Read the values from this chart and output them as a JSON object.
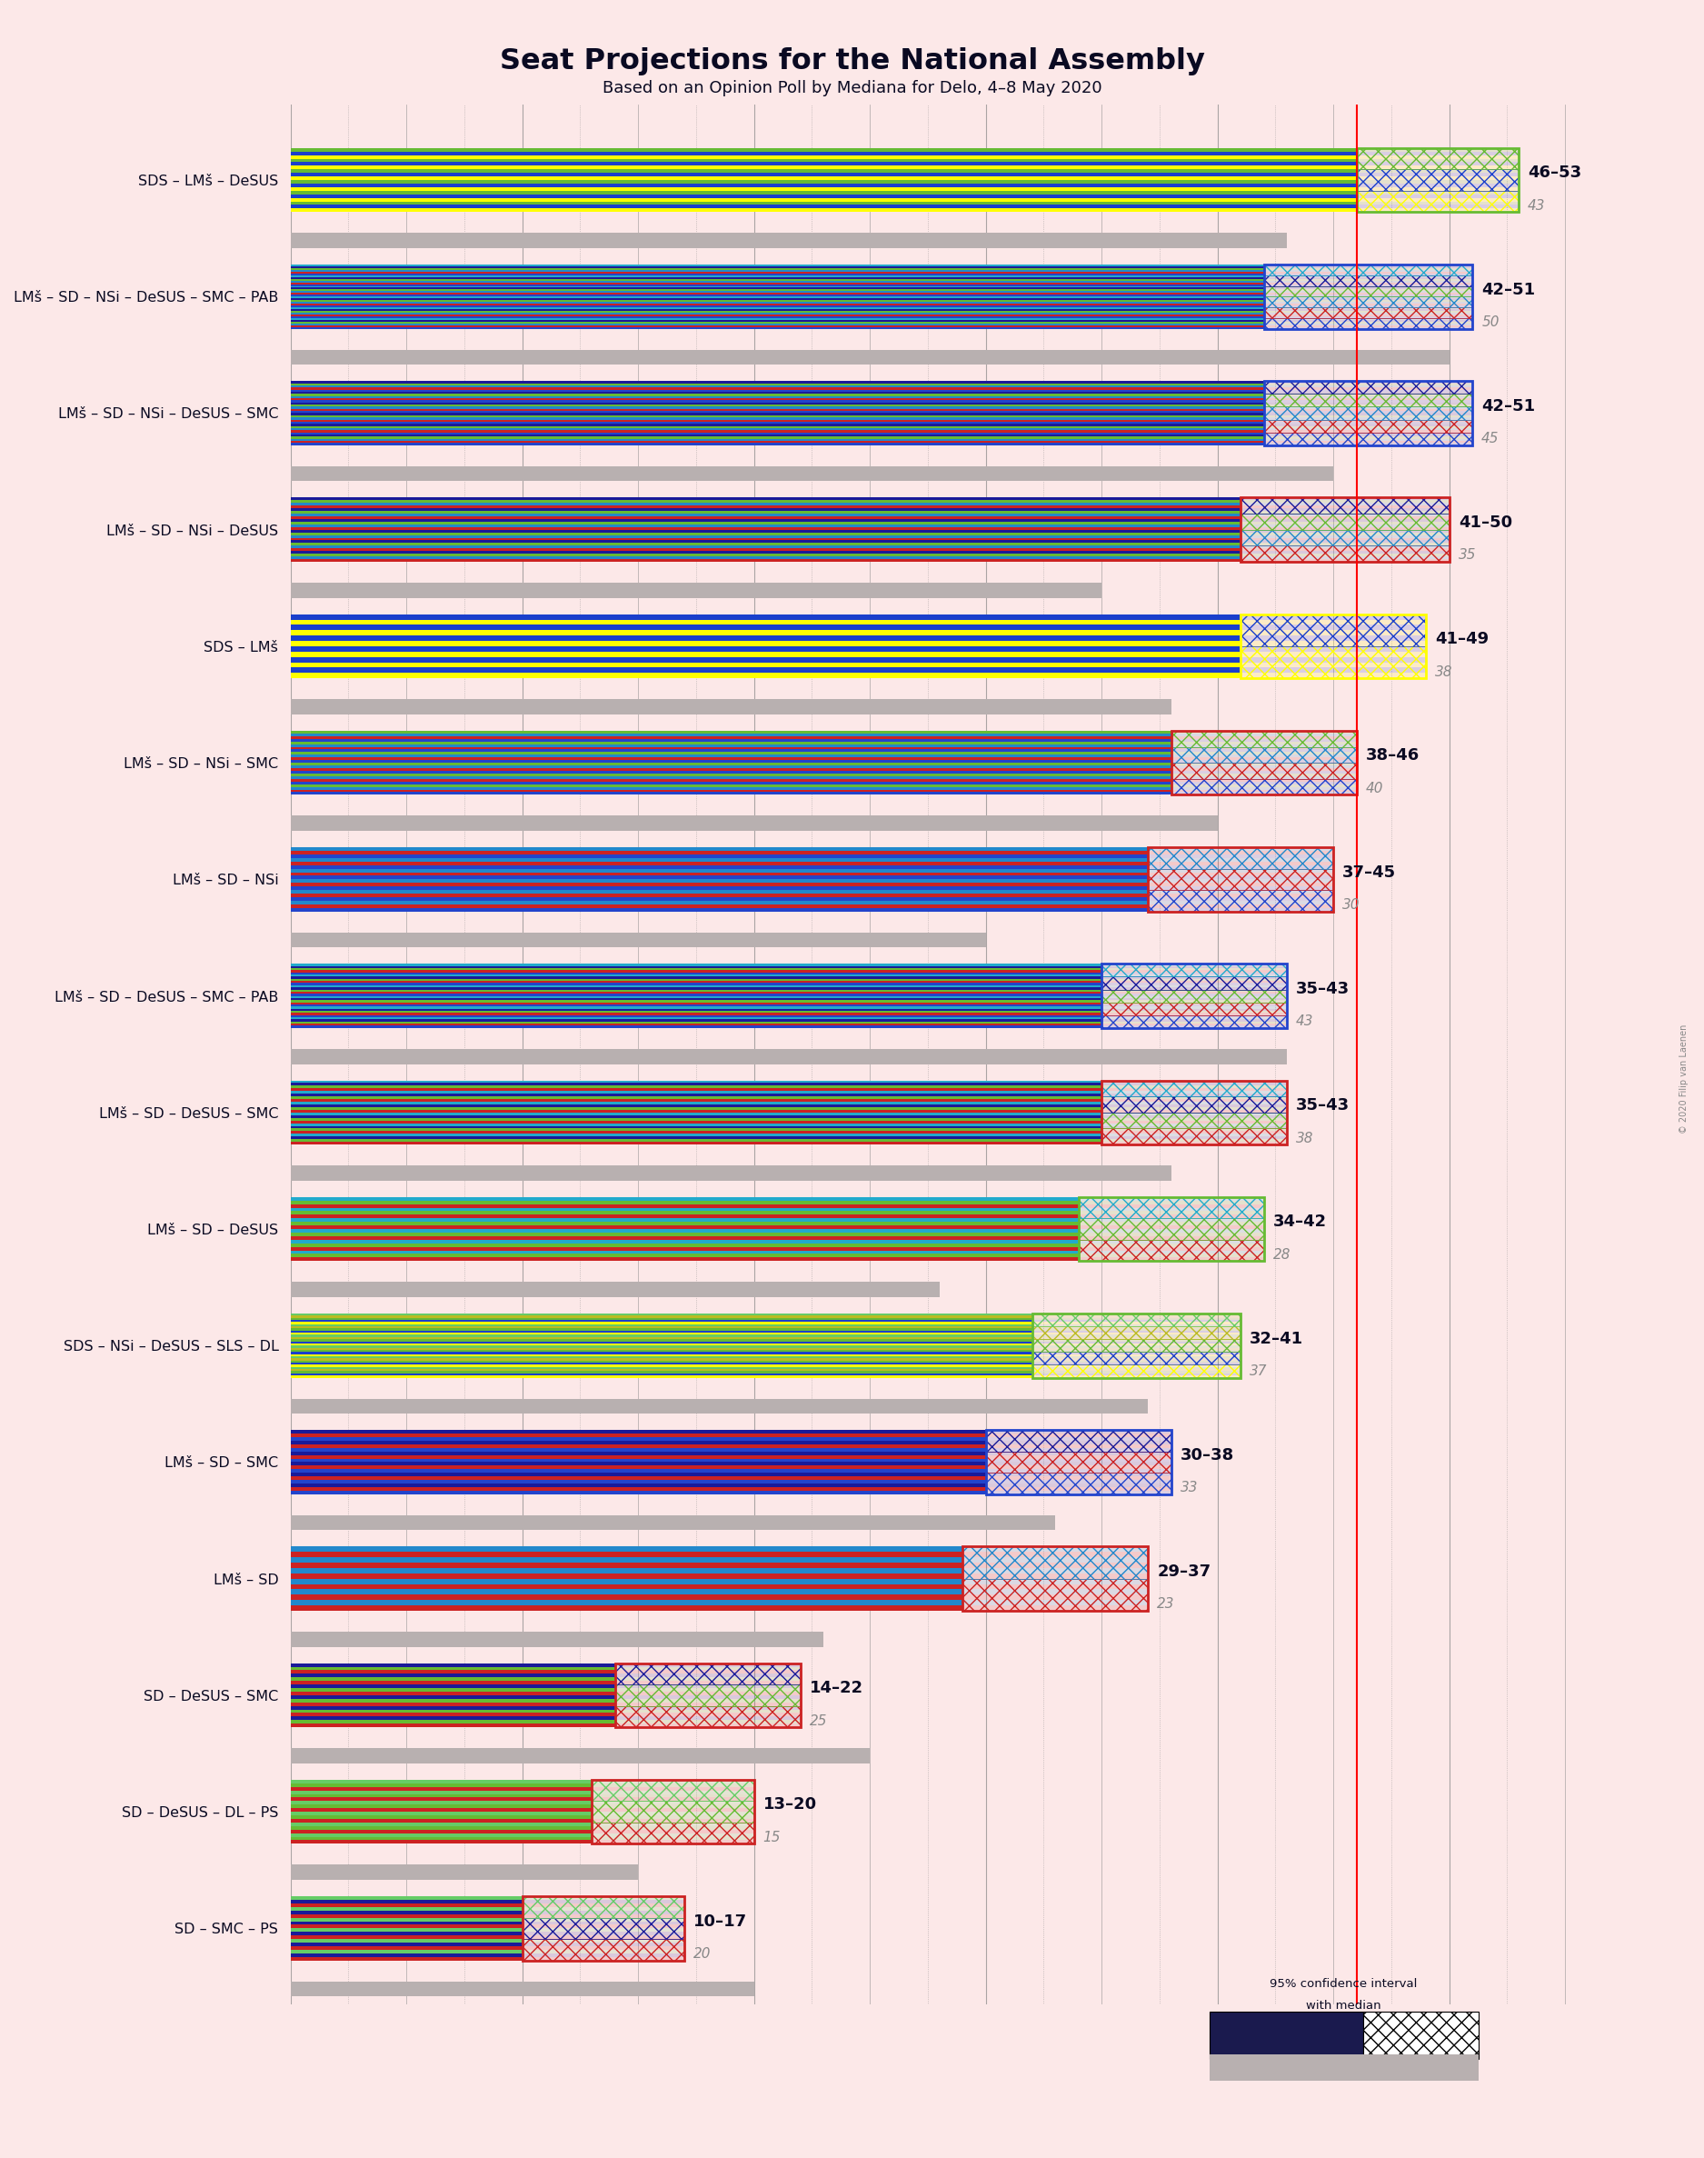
{
  "title": "Seat Projections for the National Assembly",
  "subtitle": "Based on an Opinion Poll by Mediana for Delo, 4–8 May 2020",
  "copyright": "© 2020 Filip van Laenen",
  "background_color": "#fce8e8",
  "majority_line": 46,
  "xlim": [
    0,
    56
  ],
  "coalitions": [
    {
      "name": "SDS – LMš – DeSUS",
      "low": 46,
      "high": 53,
      "last_result": 43,
      "colors": [
        "#FFFF00",
        "#1a3fcc",
        "#66bb33"
      ],
      "ci_hatch_colors": [
        "#FFFF00",
        "#1a3fcc",
        "#66bb33"
      ],
      "border_color": "#66bb33"
    },
    {
      "name": "LMš – SD – NSi – DeSUS – SMC – PAB",
      "low": 42,
      "high": 51,
      "last_result": 50,
      "colors": [
        "#2244cc",
        "#cc2222",
        "#2288cc",
        "#66bb33",
        "#1a1a99",
        "#22aacc"
      ],
      "ci_hatch_colors": [
        "#2244cc",
        "#cc2222",
        "#2288cc",
        "#66bb33",
        "#1a1a99",
        "#22aacc"
      ],
      "border_color": "#2244cc"
    },
    {
      "name": "LMš – SD – NSi – DeSUS – SMC",
      "low": 42,
      "high": 51,
      "last_result": 45,
      "colors": [
        "#2244cc",
        "#cc2222",
        "#2288cc",
        "#66bb33",
        "#1a1a99"
      ],
      "ci_hatch_colors": [
        "#2244cc",
        "#cc2222",
        "#2288cc",
        "#66bb33",
        "#1a1a99"
      ],
      "border_color": "#2244cc"
    },
    {
      "name": "LMš – SD – NSi – DeSUS",
      "low": 41,
      "high": 50,
      "last_result": 35,
      "colors": [
        "#cc2222",
        "#2288cc",
        "#66bb33",
        "#1a1a99"
      ],
      "ci_hatch_colors": [
        "#cc2222",
        "#2288cc",
        "#66bb33",
        "#1a1a99"
      ],
      "border_color": "#cc2222"
    },
    {
      "name": "SDS – LMš",
      "low": 41,
      "high": 49,
      "last_result": 38,
      "colors": [
        "#FFFF00",
        "#1a3fcc"
      ],
      "ci_hatch_colors": [
        "#FFFF00",
        "#1a3fcc"
      ],
      "border_color": "#FFFF00"
    },
    {
      "name": "LMš – SD – NSi – SMC",
      "low": 38,
      "high": 46,
      "last_result": 40,
      "colors": [
        "#2244cc",
        "#cc2222",
        "#2288cc",
        "#66bb33"
      ],
      "ci_hatch_colors": [
        "#2244cc",
        "#cc2222",
        "#2288cc",
        "#66bb33"
      ],
      "border_color": "#cc2222"
    },
    {
      "name": "LMš – SD – NSi",
      "low": 37,
      "high": 45,
      "last_result": 30,
      "colors": [
        "#2244cc",
        "#cc2222",
        "#2288cc"
      ],
      "ci_hatch_colors": [
        "#2244cc",
        "#cc2222",
        "#2288cc"
      ],
      "border_color": "#cc2222"
    },
    {
      "name": "LMš – SD – DeSUS – SMC – PAB",
      "low": 35,
      "high": 43,
      "last_result": 43,
      "colors": [
        "#2244cc",
        "#cc2222",
        "#66bb33",
        "#1a1a99",
        "#22aacc"
      ],
      "ci_hatch_colors": [
        "#2244cc",
        "#cc2222",
        "#66bb33",
        "#1a1a99",
        "#22aacc"
      ],
      "border_color": "#2244cc"
    },
    {
      "name": "LMš – SD – DeSUS – SMC",
      "low": 35,
      "high": 43,
      "last_result": 38,
      "colors": [
        "#cc2222",
        "#66bb33",
        "#1a1a99",
        "#22aacc"
      ],
      "ci_hatch_colors": [
        "#cc2222",
        "#66bb33",
        "#1a1a99",
        "#22aacc"
      ],
      "border_color": "#cc2222"
    },
    {
      "name": "LMš – SD – DeSUS",
      "low": 34,
      "high": 42,
      "last_result": 28,
      "colors": [
        "#cc2222",
        "#66bb33",
        "#22aacc"
      ],
      "ci_hatch_colors": [
        "#cc2222",
        "#66bb33",
        "#22aacc"
      ],
      "border_color": "#66bb33"
    },
    {
      "name": "SDS – NSi – DeSUS – SLS – DL",
      "low": 32,
      "high": 41,
      "last_result": 37,
      "colors": [
        "#FFFF00",
        "#1a3fcc",
        "#66bb33",
        "#bbbb22",
        "#66cc66"
      ],
      "ci_hatch_colors": [
        "#FFFF00",
        "#1a3fcc",
        "#66bb33",
        "#bbbb22",
        "#66cc66"
      ],
      "border_color": "#66bb33"
    },
    {
      "name": "LMš – SD – SMC",
      "low": 30,
      "high": 38,
      "last_result": 33,
      "colors": [
        "#2244cc",
        "#cc2222",
        "#1a1a99"
      ],
      "ci_hatch_colors": [
        "#2244cc",
        "#cc2222",
        "#1a1a99"
      ],
      "border_color": "#2244cc"
    },
    {
      "name": "LMš – SD",
      "low": 29,
      "high": 37,
      "last_result": 23,
      "colors": [
        "#cc2222",
        "#2288cc"
      ],
      "ci_hatch_colors": [
        "#cc2222",
        "#2288cc"
      ],
      "border_color": "#cc2222"
    },
    {
      "name": "SD – DeSUS – SMC",
      "low": 14,
      "high": 22,
      "last_result": 25,
      "colors": [
        "#cc2222",
        "#66bb33",
        "#1a1a99"
      ],
      "ci_hatch_colors": [
        "#cc2222",
        "#66bb33",
        "#1a1a99"
      ],
      "border_color": "#cc2222"
    },
    {
      "name": "SD – DeSUS – DL – PS",
      "low": 13,
      "high": 20,
      "last_result": 15,
      "colors": [
        "#cc2222",
        "#66bb33",
        "#66cc66"
      ],
      "ci_hatch_colors": [
        "#cc2222",
        "#66bb33",
        "#66cc66"
      ],
      "border_color": "#cc2222"
    },
    {
      "name": "SD – SMC – PS",
      "low": 10,
      "high": 17,
      "last_result": 20,
      "colors": [
        "#cc2222",
        "#1a1a99",
        "#66cc66"
      ],
      "ci_hatch_colors": [
        "#cc2222",
        "#1a1a99",
        "#66cc66"
      ],
      "border_color": "#cc2222"
    }
  ]
}
